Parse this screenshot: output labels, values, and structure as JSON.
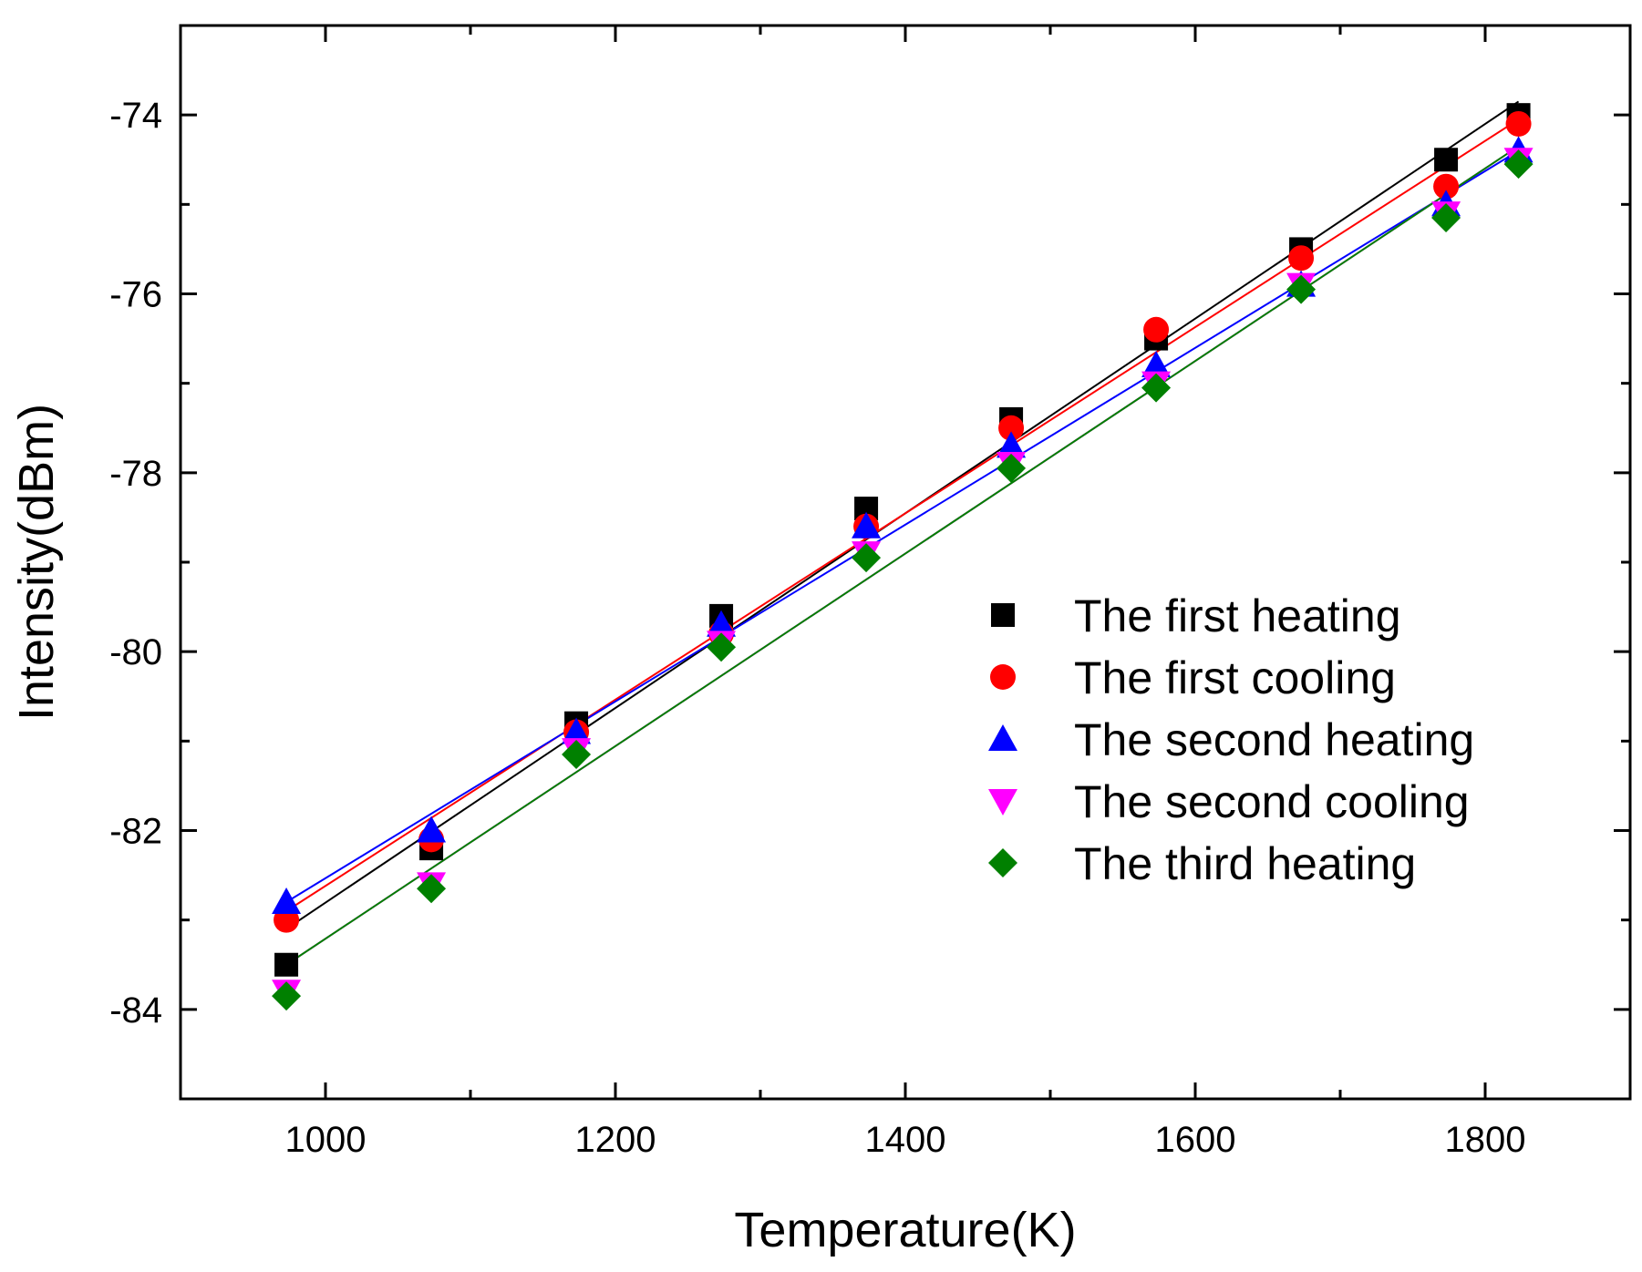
{
  "chart_data": {
    "type": "scatter",
    "title": "",
    "xlabel": "Temperature(K)",
    "ylabel": "Intensity(dBm)",
    "xlim": [
      900,
      1900
    ],
    "ylim": [
      -85,
      -73
    ],
    "xticks": [
      1000,
      1200,
      1400,
      1600,
      1800
    ],
    "xticks_minor": [
      1100,
      1300,
      1500,
      1700
    ],
    "yticks": [
      -84,
      -82,
      -80,
      -78,
      -76,
      -74
    ],
    "yticks_minor": [
      -83,
      -81,
      -79,
      -77,
      -75
    ],
    "x_tick_labels": [
      "1000",
      "1200",
      "1400",
      "1600",
      "1800"
    ],
    "y_tick_labels": [
      "-84",
      "-82",
      "-80",
      "-78",
      "-76",
      "-74"
    ],
    "legend_position": "right-center",
    "grid": false,
    "series": [
      {
        "name": "The first heating",
        "marker": "square",
        "color": "#000000",
        "x": [
          973,
          1073,
          1173,
          1273,
          1373,
          1473,
          1573,
          1673,
          1773,
          1823
        ],
        "y": [
          -83.5,
          -82.2,
          -80.8,
          -79.6,
          -78.4,
          -77.4,
          -76.5,
          -75.5,
          -74.5,
          -74.0
        ],
        "fit": {
          "x": [
            973,
            1823
          ],
          "y": [
            -83.1,
            -73.85
          ]
        }
      },
      {
        "name": "The first cooling",
        "marker": "circle",
        "color": "#ff0000",
        "x": [
          973,
          1073,
          1173,
          1273,
          1373,
          1473,
          1573,
          1673,
          1773,
          1823
        ],
        "y": [
          -83.0,
          -82.1,
          -80.9,
          -79.8,
          -78.6,
          -77.5,
          -76.4,
          -75.6,
          -74.8,
          -74.1
        ],
        "fit": {
          "x": [
            973,
            1823
          ],
          "y": [
            -82.9,
            -74.05
          ]
        }
      },
      {
        "name": "The second heating",
        "marker": "triangle-up",
        "color": "#0000ff",
        "x": [
          973,
          1073,
          1173,
          1273,
          1373,
          1473,
          1573,
          1673,
          1773,
          1823
        ],
        "y": [
          -82.8,
          -82.0,
          -80.9,
          -79.7,
          -78.6,
          -77.7,
          -76.8,
          -75.9,
          -75.0,
          -74.4
        ],
        "fit": {
          "x": [
            973,
            1823
          ],
          "y": [
            -82.8,
            -74.4
          ]
        }
      },
      {
        "name": "The second cooling",
        "marker": "triangle-down",
        "color": "#ff00ff",
        "x": [
          973,
          1073,
          1173,
          1273,
          1373,
          1473,
          1573,
          1673,
          1773,
          1823
        ],
        "y": [
          -83.8,
          -82.6,
          -81.1,
          -79.9,
          -78.9,
          -77.9,
          -77.0,
          -75.9,
          -75.1,
          -74.5
        ],
        "fit": {
          "x": [
            973,
            1823
          ],
          "y": [
            -83.5,
            -74.35
          ]
        }
      },
      {
        "name": "The third heating",
        "marker": "diamond",
        "color": "#008000",
        "x": [
          973,
          1073,
          1173,
          1273,
          1373,
          1473,
          1573,
          1673,
          1773,
          1823
        ],
        "y": [
          -83.85,
          -82.65,
          -81.15,
          -79.95,
          -78.95,
          -77.95,
          -77.05,
          -75.95,
          -75.15,
          -74.55
        ],
        "fit": {
          "x": [
            973,
            1823
          ],
          "y": [
            -83.5,
            -74.35
          ]
        }
      }
    ]
  }
}
